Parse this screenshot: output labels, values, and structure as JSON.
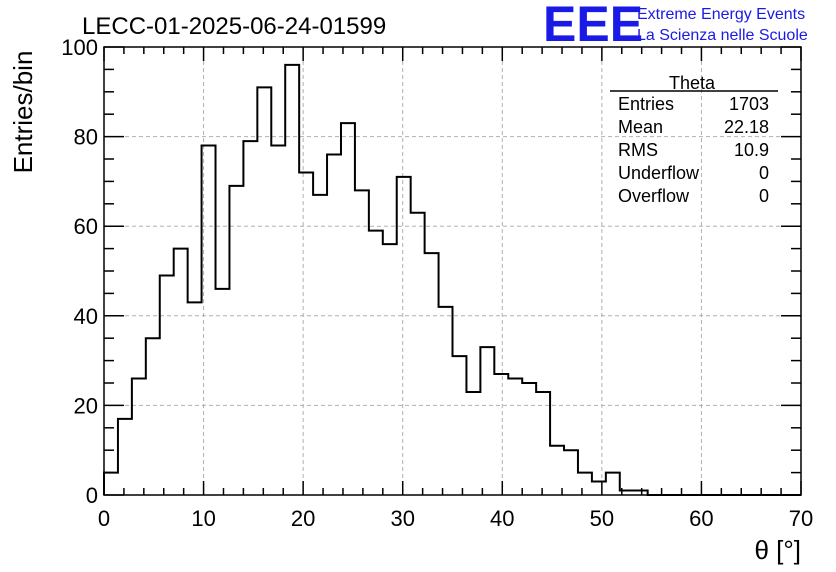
{
  "chart_data": {
    "type": "bar",
    "title": "LECC-01-2025-06-24-01599",
    "xlabel": "θ [°]",
    "ylabel": "Entries/bin",
    "xlim": [
      0,
      70
    ],
    "ylim": [
      0,
      100
    ],
    "bin_width": 1.4,
    "x_ticks": [
      0,
      10,
      20,
      30,
      40,
      50,
      60,
      70
    ],
    "y_ticks": [
      0,
      20,
      40,
      60,
      80,
      100
    ],
    "grid": true,
    "values": [
      5,
      17,
      26,
      35,
      49,
      55,
      43,
      78,
      46,
      69,
      79,
      91,
      78,
      96,
      72,
      67,
      76,
      83,
      68,
      59,
      56,
      71,
      63,
      54,
      42,
      31,
      23,
      33,
      27,
      26,
      25,
      23,
      11,
      10,
      5,
      3,
      5,
      1,
      1,
      0,
      0,
      0,
      0,
      0,
      0,
      0,
      0,
      0,
      0,
      0
    ]
  },
  "stats": {
    "title": "Theta",
    "rows": [
      {
        "label": "Entries",
        "value": "1703"
      },
      {
        "label": "Mean",
        "value": "22.18"
      },
      {
        "label": "RMS",
        "value": "10.9"
      },
      {
        "label": "Underflow",
        "value": "0"
      },
      {
        "label": "Overflow",
        "value": "0"
      }
    ]
  },
  "logo": {
    "mark": "EEE",
    "line1": "Extreme Energy Events",
    "line2": "La Scienza nelle Scuole"
  }
}
